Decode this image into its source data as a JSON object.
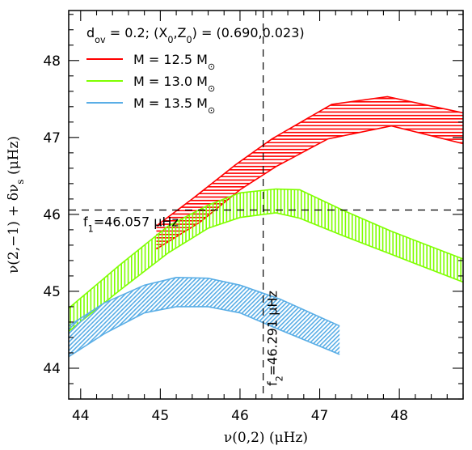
{
  "chart_data": {
    "type": "area",
    "title": "",
    "header_text": "d_ov = 0.2;  (X_0,Z_0) = (0.690,0.023)",
    "header_parts": {
      "d_sym": "d",
      "d_sub": "ov",
      "d_val": " = 0.2;  (X",
      "x_sub": "0",
      "mid": ",Z",
      "z_sub": "0",
      "tail": ") = (0.690,0.023)"
    },
    "xlabel": "ν(0,2)  (μHz)",
    "ylabel": "ν(2,−1) + δν_s (μHz)",
    "xlim": [
      43.85,
      48.8
    ],
    "ylim": [
      43.6,
      48.65
    ],
    "xticks": [
      44,
      45,
      46,
      47,
      48
    ],
    "yticks": [
      44,
      45,
      46,
      47,
      48
    ],
    "grid": false,
    "legend_position": "top-left",
    "series": [
      {
        "name": "M = 12.5 M_⊙",
        "label_main": "M = 12.5 M",
        "label_sym": "⊙",
        "color": "#ff0000",
        "hatch": "horizontal",
        "upper": [
          [
            44.95,
            45.85
          ],
          [
            45.4,
            46.2
          ],
          [
            45.95,
            46.65
          ],
          [
            46.4,
            46.98
          ],
          [
            47.15,
            47.43
          ],
          [
            47.85,
            47.53
          ],
          [
            48.8,
            47.32
          ]
        ],
        "lower": [
          [
            44.95,
            45.55
          ],
          [
            45.5,
            45.9
          ],
          [
            46.0,
            46.32
          ],
          [
            46.45,
            46.62
          ],
          [
            47.1,
            46.98
          ],
          [
            47.9,
            47.15
          ],
          [
            48.8,
            46.92
          ]
        ]
      },
      {
        "name": "M = 13.0 M_⊙",
        "label_main": "M = 13.0 M",
        "label_sym": "⊙",
        "color": "#7fff00",
        "hatch": "vertical",
        "upper": [
          [
            43.85,
            44.78
          ],
          [
            44.5,
            45.35
          ],
          [
            45.1,
            45.85
          ],
          [
            45.6,
            46.12
          ],
          [
            46.0,
            46.28
          ],
          [
            46.45,
            46.33
          ],
          [
            46.75,
            46.32
          ],
          [
            47.3,
            46.05
          ],
          [
            47.9,
            45.78
          ],
          [
            48.8,
            45.42
          ]
        ],
        "lower": [
          [
            43.85,
            44.48
          ],
          [
            44.5,
            45.02
          ],
          [
            45.1,
            45.5
          ],
          [
            45.6,
            45.82
          ],
          [
            46.0,
            45.96
          ],
          [
            46.45,
            46.02
          ],
          [
            46.75,
            45.95
          ],
          [
            47.3,
            45.72
          ],
          [
            47.9,
            45.48
          ],
          [
            48.8,
            45.12
          ]
        ]
      },
      {
        "name": "M = 13.5 M_⊙",
        "label_main": "M = 13.5 M",
        "label_sym": "⊙",
        "color": "#5aaee6",
        "hatch": "diagonal",
        "upper": [
          [
            43.85,
            44.55
          ],
          [
            44.3,
            44.85
          ],
          [
            44.8,
            45.08
          ],
          [
            45.2,
            45.18
          ],
          [
            45.6,
            45.17
          ],
          [
            46.0,
            45.08
          ],
          [
            46.5,
            44.9
          ],
          [
            47.25,
            44.55
          ]
        ],
        "lower": [
          [
            43.85,
            44.15
          ],
          [
            44.3,
            44.45
          ],
          [
            44.8,
            44.72
          ],
          [
            45.2,
            44.8
          ],
          [
            45.6,
            44.8
          ],
          [
            46.0,
            44.72
          ],
          [
            46.5,
            44.5
          ],
          [
            47.25,
            44.18
          ]
        ]
      }
    ],
    "reference_lines": {
      "f1": {
        "value": 46.057,
        "label_prefix": "f",
        "label_sub": "1",
        "label_text": "=46.057 μHz"
      },
      "f2": {
        "value": 46.291,
        "label_prefix": "f",
        "label_sub": "2",
        "label_text": "=46.291 μHz"
      }
    }
  }
}
